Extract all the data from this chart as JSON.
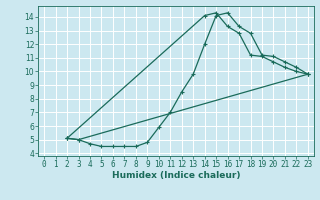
{
  "title": "",
  "xlabel": "Humidex (Indice chaleur)",
  "bg_color": "#cce8f0",
  "grid_color": "#ffffff",
  "line_color": "#1a6b5a",
  "xlim": [
    -0.5,
    23.5
  ],
  "ylim": [
    3.8,
    14.8
  ],
  "xticks": [
    0,
    1,
    2,
    3,
    4,
    5,
    6,
    7,
    8,
    9,
    10,
    11,
    12,
    13,
    14,
    15,
    16,
    17,
    18,
    19,
    20,
    21,
    22,
    23
  ],
  "yticks": [
    4,
    5,
    6,
    7,
    8,
    9,
    10,
    11,
    12,
    13,
    14
  ],
  "curve1_x": [
    2,
    3,
    4,
    5,
    6,
    7,
    8,
    9,
    10,
    11,
    12,
    13,
    14,
    15,
    16,
    17,
    18,
    19,
    20,
    21,
    22,
    23
  ],
  "curve1_y": [
    5.1,
    5.0,
    4.7,
    4.5,
    4.5,
    4.5,
    4.5,
    4.8,
    5.9,
    7.0,
    8.5,
    9.8,
    12.0,
    14.1,
    14.3,
    13.3,
    12.8,
    11.2,
    11.1,
    10.7,
    10.3,
    9.8
  ],
  "curve2_x": [
    2,
    3,
    23
  ],
  "curve2_y": [
    5.1,
    5.0,
    9.8
  ],
  "curve3_x": [
    2,
    14,
    15,
    16,
    17,
    18,
    19,
    20,
    21,
    22,
    23
  ],
  "curve3_y": [
    5.1,
    14.1,
    14.3,
    13.3,
    12.8,
    11.2,
    11.1,
    10.7,
    10.3,
    10.0,
    9.8
  ],
  "marker_size": 3.5,
  "linewidth": 0.9,
  "tick_fontsize": 5.5,
  "xlabel_fontsize": 6.5
}
